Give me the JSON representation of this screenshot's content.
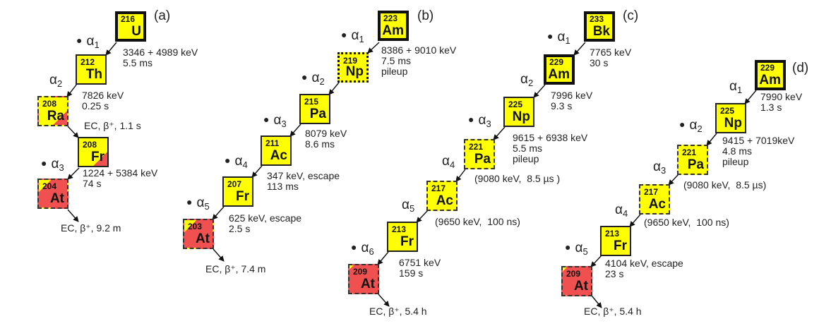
{
  "colors": {
    "nuclide_fill": "#ffff00",
    "alpha_emitter_partial": "#f05050"
  },
  "panels": {
    "a": {
      "label": "(a)",
      "nuclides": [
        {
          "mass": "216",
          "symbol": "U",
          "border": "thick",
          "fill": "yellow"
        },
        {
          "mass": "212",
          "symbol": "Th",
          "border": "solid",
          "fill": "yellow"
        },
        {
          "mass": "208",
          "symbol": "Ra",
          "border": "dashed",
          "fill": "yellow-red-corner"
        },
        {
          "mass": "208",
          "symbol": "Fr",
          "border": "solid",
          "fill": "yellow-red-corner"
        },
        {
          "mass": "204",
          "symbol": "At",
          "border": "dashed",
          "fill": "red-yellow-corner"
        }
      ],
      "decays": [
        {
          "alpha": "α",
          "index": "1",
          "dot": "●",
          "text": "3346 + 4989 keV\n5.5 ms"
        },
        {
          "alpha": "α",
          "index": "2",
          "text": "7826 keV\n0.25 s"
        },
        {
          "text": "EC, β⁺, 1.1 s"
        },
        {
          "alpha": "α",
          "index": "3",
          "dot": "●",
          "text": "1224 + 5384 keV\n74 s"
        },
        {
          "text": "EC, β⁺, 9.2 m"
        }
      ]
    },
    "b": {
      "label": "(b)",
      "nuclides": [
        {
          "mass": "223",
          "symbol": "Am",
          "border": "thick",
          "fill": "yellow"
        },
        {
          "mass": "219",
          "symbol": "Np",
          "border": "dotted",
          "fill": "yellow"
        },
        {
          "mass": "215",
          "symbol": "Pa",
          "border": "solid",
          "fill": "yellow"
        },
        {
          "mass": "211",
          "symbol": "Ac",
          "border": "solid",
          "fill": "yellow"
        },
        {
          "mass": "207",
          "symbol": "Fr",
          "border": "solid",
          "fill": "yellow"
        },
        {
          "mass": "203",
          "symbol": "At",
          "border": "dashed",
          "fill": "red-yellow-corner"
        }
      ],
      "decays": [
        {
          "alpha": "α",
          "index": "1",
          "dot": "●",
          "text": "8386 + 9010 keV\n7.5 ms\npileup"
        },
        {
          "alpha": "α",
          "index": "2",
          "dot": "●",
          "text": "8079 keV\n8.6 ms"
        },
        {
          "alpha": "α",
          "index": "3",
          "dot": "●",
          "text": "347 keV, escape\n113 ms"
        },
        {
          "alpha": "α",
          "index": "4",
          "dot": "●",
          "text": "625 keV, escape\n2.5 s"
        },
        {
          "alpha": "α",
          "index": "5",
          "dot": "●",
          "text": ""
        },
        {
          "text": "EC, β⁺, 7.4 m"
        }
      ]
    },
    "c": {
      "label": "(c)",
      "nuclides": [
        {
          "mass": "233",
          "symbol": "Bk",
          "border": "thick",
          "fill": "yellow"
        },
        {
          "mass": "229",
          "symbol": "Am",
          "border": "thick",
          "fill": "yellow"
        },
        {
          "mass": "225",
          "symbol": "Np",
          "border": "solid",
          "fill": "yellow"
        },
        {
          "mass": "221",
          "symbol": "Pa",
          "border": "dashed",
          "fill": "yellow"
        },
        {
          "mass": "217",
          "symbol": "Ac",
          "border": "dashed",
          "fill": "yellow"
        },
        {
          "mass": "213",
          "symbol": "Fr",
          "border": "solid",
          "fill": "yellow"
        },
        {
          "mass": "209",
          "symbol": "At",
          "border": "dashed",
          "fill": "red"
        }
      ],
      "decays": [
        {
          "alpha": "α",
          "index": "1",
          "dot": "●",
          "text": "7765 keV\n30 s"
        },
        {
          "alpha": "α",
          "index": "2",
          "text": "7996 keV\n9.3 s"
        },
        {
          "alpha": "α",
          "index": "3",
          "dot": "●",
          "text": "9615 + 6938 keV\n5.5 ms\npileup"
        },
        {
          "alpha": "α",
          "index": "4",
          "text": "(9080 keV,  8.5 µs )"
        },
        {
          "alpha": "α",
          "index": "5",
          "text": "(9650 keV,  100 ns)"
        },
        {
          "alpha": "α",
          "index": "6",
          "dot": "●",
          "text": "6751 keV\n159 s"
        },
        {
          "text": "EC, β⁺, 5.4 h"
        }
      ]
    },
    "d": {
      "label": "(d)",
      "nuclides": [
        {
          "mass": "229",
          "symbol": "Am",
          "border": "thick",
          "fill": "yellow"
        },
        {
          "mass": "225",
          "symbol": "Np",
          "border": "solid",
          "fill": "yellow"
        },
        {
          "mass": "221",
          "symbol": "Pa",
          "border": "dashed",
          "fill": "yellow"
        },
        {
          "mass": "217",
          "symbol": "Ac",
          "border": "dashed",
          "fill": "yellow"
        },
        {
          "mass": "213",
          "symbol": "Fr",
          "border": "solid",
          "fill": "yellow"
        },
        {
          "mass": "209",
          "symbol": "At",
          "border": "dashed",
          "fill": "red"
        }
      ],
      "decays": [
        {
          "alpha": "α",
          "index": "1",
          "text": "7990 keV\n1.3 s"
        },
        {
          "alpha": "α",
          "index": "2",
          "dot": "●",
          "text": "9415 + 7019keV\n4.8 ms\npileup"
        },
        {
          "alpha": "α",
          "index": "3",
          "text": "(9080 keV,  8.5 µs)"
        },
        {
          "alpha": "α",
          "index": "4",
          "text": "(9650 keV,  100 ns)"
        },
        {
          "alpha": "α",
          "index": "5",
          "dot": "●",
          "text": "4104 keV, escape\n23 s"
        },
        {
          "text": "EC, β⁺, 5.4 h"
        }
      ]
    }
  }
}
